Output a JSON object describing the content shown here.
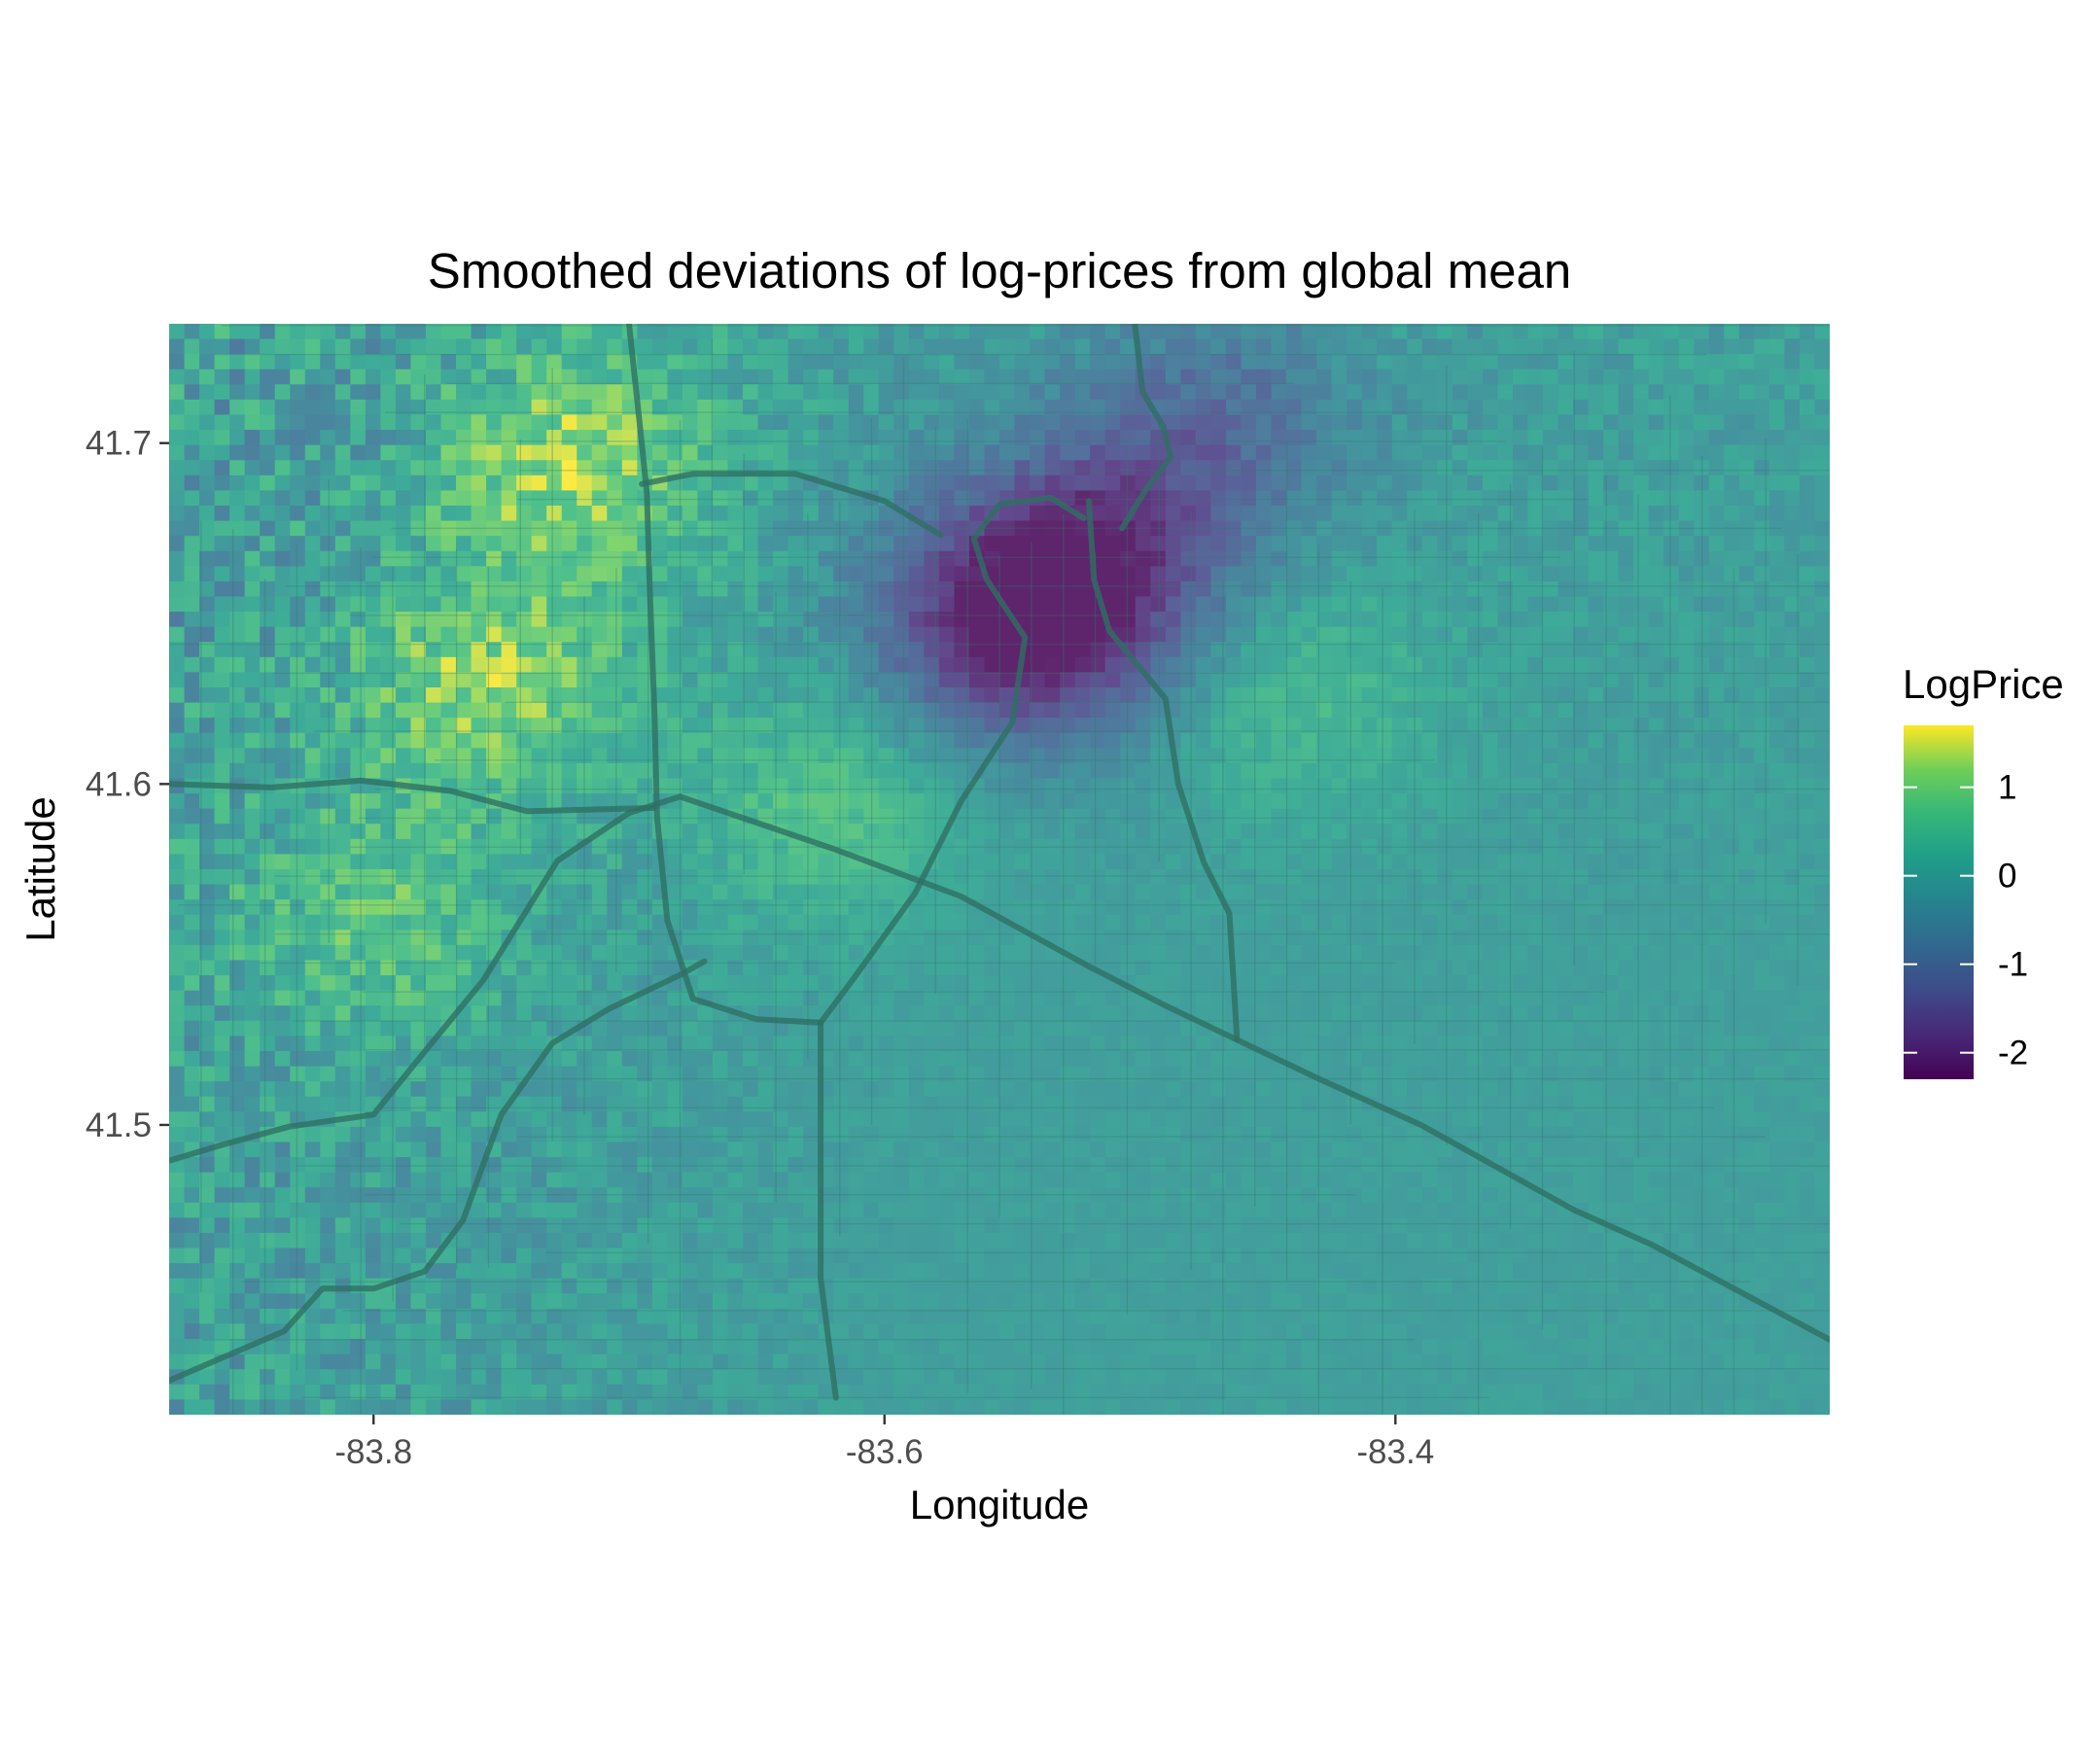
{
  "chart_data": {
    "type": "heatmap",
    "title": "Smoothed deviations of log-prices from global mean",
    "xlabel": "Longitude",
    "ylabel": "Latitude",
    "xlim": [
      -83.88,
      -83.23
    ],
    "ylim": [
      41.415,
      41.735
    ],
    "x_ticks": [
      -83.8,
      -83.6,
      -83.4
    ],
    "y_ticks": [
      41.5,
      41.6,
      41.7
    ],
    "x_tick_labels": [
      "-83.8",
      "-83.6",
      "-83.4"
    ],
    "y_tick_labels": [
      "41.5",
      "41.6",
      "41.7"
    ],
    "grid": true,
    "basemap": "street map",
    "legend": {
      "title": "LogPrice",
      "placement": "right",
      "range": [
        -2.3,
        1.7
      ],
      "ticks": [
        -2,
        -1,
        0,
        1
      ],
      "tick_labels": [
        "-2",
        "-1",
        "0",
        "1"
      ],
      "colormap": "viridis"
    },
    "hotspots": [
      {
        "lon": -83.55,
        "lat": 41.645,
        "value": -2.0
      },
      {
        "lon": -83.52,
        "lat": 41.665,
        "value": -1.6
      },
      {
        "lon": -83.47,
        "lat": 41.705,
        "value": -1.0
      },
      {
        "lon": -83.72,
        "lat": 41.695,
        "value": 1.3
      },
      {
        "lon": -83.755,
        "lat": 41.63,
        "value": 1.2
      },
      {
        "lon": -83.8,
        "lat": 41.56,
        "value": 0.9
      },
      {
        "lon": -83.62,
        "lat": 41.595,
        "value": 0.8
      },
      {
        "lon": -83.44,
        "lat": 41.625,
        "value": 0.6
      }
    ]
  }
}
